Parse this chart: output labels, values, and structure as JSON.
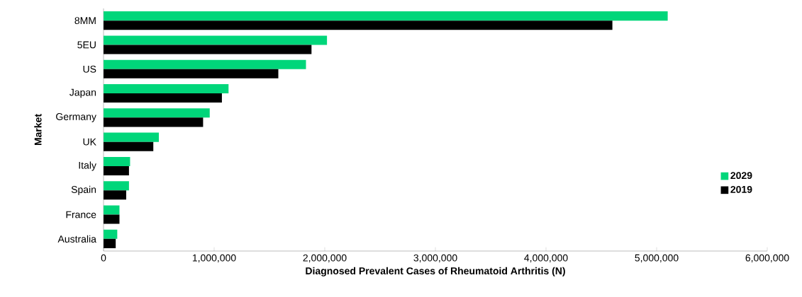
{
  "chart_data": {
    "type": "bar",
    "orientation": "horizontal",
    "xlabel": "Diagnosed Prevalent Cases of Rheumatoid Arthritis (N)",
    "ylabel": "Market",
    "categories": [
      "8MM",
      "5EU",
      "US",
      "Japan",
      "Germany",
      "UK",
      "Italy",
      "Spain",
      "France",
      "Australia"
    ],
    "series": [
      {
        "name": "2029",
        "color": "#00d67a",
        "values": [
          5100000,
          2020000,
          1830000,
          1130000,
          960000,
          500000,
          240000,
          230000,
          144000,
          124000
        ]
      },
      {
        "name": "2019",
        "color": "#000000",
        "values": [
          4600000,
          1880000,
          1580000,
          1070000,
          900000,
          450000,
          230000,
          205000,
          144000,
          110000
        ]
      }
    ],
    "xlim": [
      0,
      6000000
    ],
    "xticks": [
      0,
      {
        "value": 1000000,
        "label": "1,000,000"
      },
      {
        "value": 2000000,
        "label": "2,000,000"
      },
      {
        "value": 3000000,
        "label": "3,000,000"
      },
      {
        "value": 4000000,
        "label": "4,000,000"
      },
      {
        "value": 5000000,
        "label": "5,000,000"
      },
      {
        "value": 6000000,
        "label": "6,000,000"
      }
    ],
    "legend": "right",
    "grid": false
  }
}
